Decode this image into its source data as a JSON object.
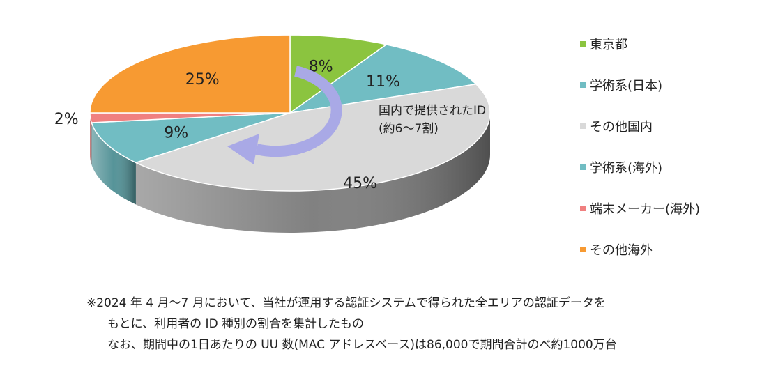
{
  "chart_data": {
    "type": "pie",
    "slices": [
      {
        "label": "東京都",
        "value": 8,
        "value_label": "8%",
        "color": "#8bc43f",
        "side": "#5f8a2a"
      },
      {
        "label": "学術系(日本)",
        "value": 11,
        "value_label": "11%",
        "color": "#71bdc3",
        "side": "#4d8e93"
      },
      {
        "label": "その他国内",
        "value": 45,
        "value_label": "45%",
        "color": "#d9d9d9",
        "side": "#7a7a7a"
      },
      {
        "label": "学術系(海外)",
        "value": 9,
        "value_label": "9%",
        "color": "#71bdc3",
        "side": "#4d8e93"
      },
      {
        "label": "端末メーカー(海外)",
        "value": 2,
        "value_label": "2%",
        "color": "#f08080",
        "side": "#b55c5c"
      },
      {
        "label": "その他海外",
        "value": 25,
        "value_label": "25%",
        "color": "#f79a32",
        "side": "#b86f20"
      }
    ],
    "legend_position": "right",
    "annotation": {
      "line1": "国内で提供されたID",
      "line2": "(約6～7割)",
      "arrow_color": "#a9a9e6"
    }
  },
  "legend": {
    "items": [
      {
        "label": "東京都",
        "color": "#8bc43f"
      },
      {
        "label": "学術系(日本)",
        "color": "#71bdc3"
      },
      {
        "label": "その他国内",
        "color": "#d9d9d9"
      },
      {
        "label": "学術系(海外)",
        "color": "#71bdc3"
      },
      {
        "label": "端末メーカー(海外)",
        "color": "#f08080"
      },
      {
        "label": "その他海外",
        "color": "#f79a32"
      }
    ]
  },
  "notes": {
    "line1": "※2024 年 4 月～7 月において、当社が運用する認証システムで得られた全エリアの認証データを",
    "line2": "もとに、利用者の ID 種別の割合を集計したもの",
    "line3": "なお、期間中の1日あたりの UU 数(MAC アドレスベース)は86,000で期間合計のべ約1000万台"
  }
}
